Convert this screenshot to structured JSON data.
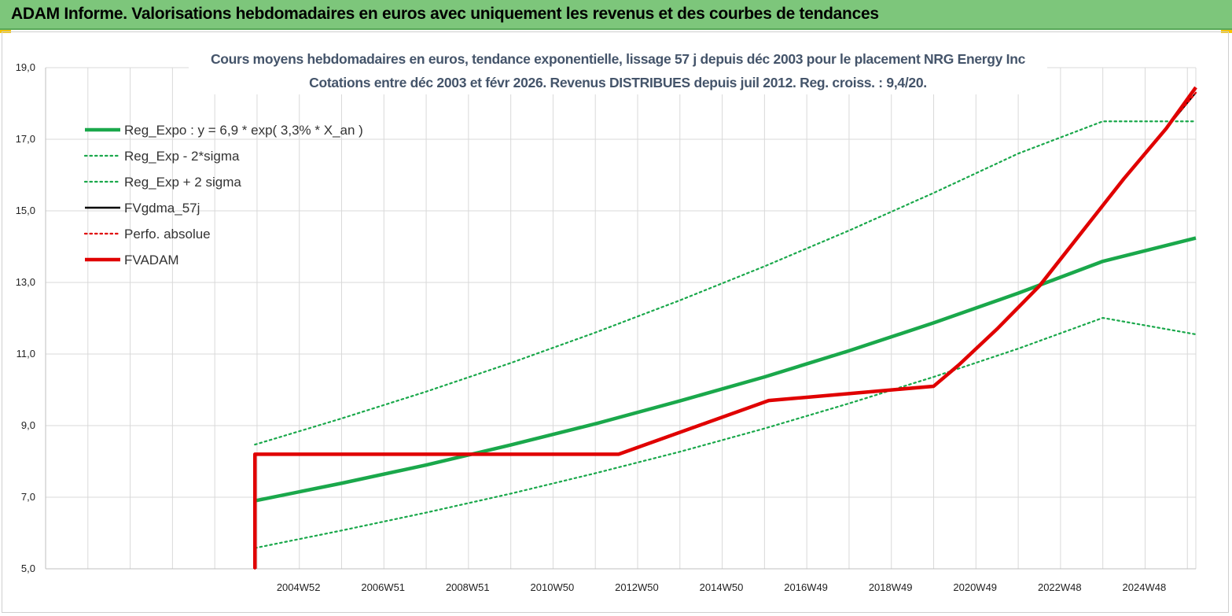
{
  "header": {
    "title": "ADAM Informe. Valorisations hebdomadaires en euros avec uniquement les revenus et des courbes de tendances"
  },
  "chart_data": {
    "type": "line",
    "title": "Cours moyens hebdomadaires en euros, tendance exponentielle, lissage 57 j depuis déc 2003 pour le placement NRG Energy Inc",
    "subtitle": "Cotations entre déc 2003 et févr 2026. Revenus DISTRIBUES depuis juil 2012. Reg. croiss. : 9,4/20.",
    "xlabel": "",
    "ylabel": "",
    "ylim": [
      5,
      19
    ],
    "xlim": [
      1999.0,
      2026.2
    ],
    "yticks": [
      "5,0",
      "7,0",
      "9,0",
      "11,0",
      "13,0",
      "15,0",
      "17,0",
      "19,0"
    ],
    "xticks": [
      {
        "label": "2004W52",
        "x": 2004.98
      },
      {
        "label": "2006W51",
        "x": 2006.98
      },
      {
        "label": "2008W51",
        "x": 2008.98
      },
      {
        "label": "2010W50",
        "x": 2010.98
      },
      {
        "label": "2012W50",
        "x": 2012.98
      },
      {
        "label": "2014W50",
        "x": 2014.98
      },
      {
        "label": "2016W49",
        "x": 2016.98
      },
      {
        "label": "2018W49",
        "x": 2018.98
      },
      {
        "label": "2020W49",
        "x": 2020.98
      },
      {
        "label": "2022W48",
        "x": 2022.98
      },
      {
        "label": "2024W48",
        "x": 2024.98
      }
    ],
    "grid": true,
    "legend": "top-left",
    "series": [
      {
        "name": "Reg_Expo : y = 6,9 * exp( 3,3% *  X_an )",
        "color": "#1aa84b",
        "style": "solid-thick",
        "x": [
          2003.95,
          2006,
          2008,
          2010,
          2012,
          2014,
          2016,
          2018,
          2020,
          2022,
          2024,
          2026.2
        ],
        "y": [
          6.9,
          7.39,
          7.9,
          8.46,
          9.05,
          9.69,
          10.36,
          11.09,
          11.87,
          12.7,
          13.59,
          14.24
        ]
      },
      {
        "name": "Reg_Exp - 2*sigma",
        "color": "#1aa84b",
        "style": "dotted",
        "x": [
          2003.95,
          2006,
          2008,
          2010,
          2012,
          2014,
          2016,
          2018,
          2020,
          2022,
          2024,
          2026.2
        ],
        "y": [
          5.58,
          6.07,
          6.57,
          7.1,
          7.67,
          8.27,
          8.92,
          9.62,
          10.36,
          11.15,
          12.01,
          11.55
        ]
      },
      {
        "name": "Reg_Exp + 2 sigma",
        "color": "#1aa84b",
        "style": "dotted",
        "x": [
          2003.95,
          2006,
          2008,
          2010,
          2012,
          2014,
          2016,
          2018,
          2020,
          2022,
          2024,
          2026.2
        ],
        "y": [
          8.47,
          9.2,
          9.95,
          10.75,
          11.6,
          12.5,
          13.45,
          14.45,
          15.5,
          16.6,
          17.5,
          17.5
        ]
      },
      {
        "name": "FVgdma_57j",
        "color": "#000000",
        "style": "solid",
        "x": [
          2003.95,
          2003.95,
          2012.55,
          2016.1,
          2020.0,
          2020.6,
          2021.5,
          2022.5,
          2023.5,
          2024.5,
          2025.5,
          2026.2
        ],
        "y": [
          5.0,
          8.2,
          8.2,
          9.7,
          10.1,
          10.7,
          11.7,
          12.9,
          14.4,
          15.9,
          17.3,
          18.3
        ]
      },
      {
        "name": "Perfo. absolue",
        "color": "#e00000",
        "style": "dotted",
        "x": [
          2003.95,
          2003.95,
          2012.55,
          2016.1,
          2020.0,
          2020.6,
          2021.5,
          2022.5,
          2023.5,
          2024.5,
          2025.5,
          2026.2
        ],
        "y": [
          5.0,
          8.2,
          8.2,
          9.7,
          10.1,
          10.7,
          11.7,
          12.9,
          14.4,
          15.9,
          17.3,
          18.3
        ]
      },
      {
        "name": "FVADAM",
        "color": "#e00000",
        "style": "solid-thick",
        "x": [
          2003.95,
          2003.95,
          2012.55,
          2016.1,
          2020.0,
          2020.6,
          2021.5,
          2022.5,
          2023.5,
          2024.5,
          2025.5,
          2026.2
        ],
        "y": [
          5.0,
          8.2,
          8.2,
          9.7,
          10.1,
          10.7,
          11.7,
          12.9,
          14.4,
          15.9,
          17.3,
          18.45
        ]
      }
    ]
  }
}
